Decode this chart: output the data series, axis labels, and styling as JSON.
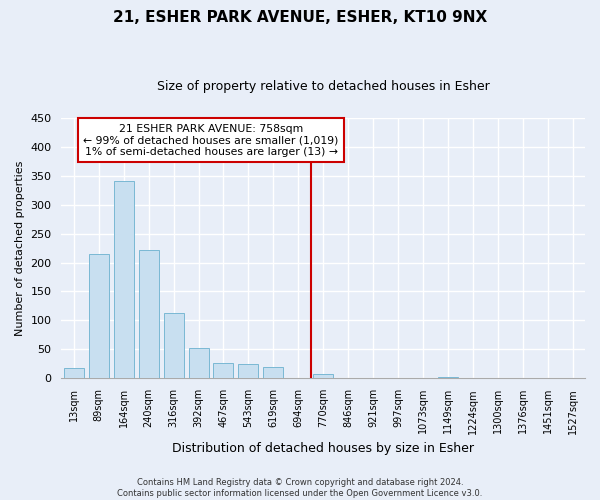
{
  "title": "21, ESHER PARK AVENUE, ESHER, KT10 9NX",
  "subtitle": "Size of property relative to detached houses in Esher",
  "xlabel": "Distribution of detached houses by size in Esher",
  "ylabel": "Number of detached properties",
  "bar_labels": [
    "13sqm",
    "89sqm",
    "164sqm",
    "240sqm",
    "316sqm",
    "392sqm",
    "467sqm",
    "543sqm",
    "619sqm",
    "694sqm",
    "770sqm",
    "846sqm",
    "921sqm",
    "997sqm",
    "1073sqm",
    "1149sqm",
    "1224sqm",
    "1300sqm",
    "1376sqm",
    "1451sqm",
    "1527sqm"
  ],
  "bar_values": [
    18,
    215,
    340,
    222,
    113,
    53,
    26,
    24,
    20,
    0,
    8,
    0,
    0,
    0,
    0,
    2,
    0,
    0,
    0,
    0,
    0
  ],
  "bar_color": "#c8dff0",
  "bar_edge_color": "#7ab8d4",
  "vline_index": 10,
  "vline_color": "#cc0000",
  "ylim": [
    0,
    450
  ],
  "yticks": [
    0,
    50,
    100,
    150,
    200,
    250,
    300,
    350,
    400,
    450
  ],
  "annotation_title": "21 ESHER PARK AVENUE: 758sqm",
  "annotation_line1": "← 99% of detached houses are smaller (1,019)",
  "annotation_line2": "1% of semi-detached houses are larger (13) →",
  "annotation_box_color": "white",
  "annotation_box_edge": "#cc0000",
  "footer_line1": "Contains HM Land Registry data © Crown copyright and database right 2024.",
  "footer_line2": "Contains public sector information licensed under the Open Government Licence v3.0.",
  "background_color": "#e8eef8",
  "grid_color": "white",
  "title_fontsize": 11,
  "subtitle_fontsize": 9,
  "ylabel_fontsize": 8,
  "xlabel_fontsize": 9,
  "tick_fontsize": 8,
  "xtick_fontsize": 7
}
